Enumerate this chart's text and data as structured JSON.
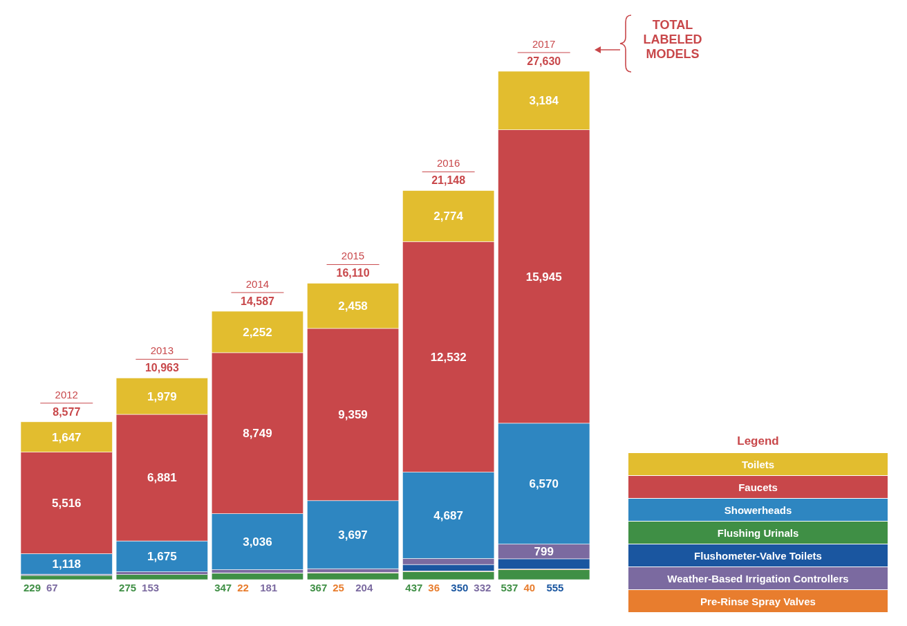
{
  "chart_data": {
    "type": "bar",
    "stacked": true,
    "categories": [
      "2012",
      "2013",
      "2014",
      "2015",
      "2016",
      "2017"
    ],
    "totals": [
      "8,577",
      "10,963",
      "14,587",
      "16,110",
      "21,148",
      "27,630"
    ],
    "legend_title": "Legend",
    "legend": "bottom right",
    "annotations": [
      "TOTAL LABELED MODELS"
    ],
    "series": [
      {
        "name": "Flushing Urinals",
        "color": "#3f8f45",
        "values": [
          229,
          275,
          347,
          367,
          437,
          537
        ],
        "value_labels": [
          "229",
          "275",
          "347",
          "367",
          "437",
          "537"
        ]
      },
      {
        "name": "Pre-Rinse Spray Valves",
        "color": "#e87d2e",
        "values": [
          null,
          null,
          22,
          25,
          36,
          40
        ],
        "value_labels": [
          null,
          null,
          "22",
          "25",
          "36",
          "40"
        ]
      },
      {
        "name": "Flushometer-Valve Toilets",
        "color": "#1a56a0",
        "values": [
          null,
          null,
          null,
          null,
          350,
          555
        ],
        "value_labels": [
          null,
          null,
          null,
          null,
          "350",
          "555"
        ]
      },
      {
        "name": "Weather-Based Irrigation Controllers",
        "color": "#7b6aa0",
        "values": [
          67,
          153,
          181,
          204,
          332,
          799
        ],
        "value_labels": [
          "67",
          "153",
          "181",
          "204",
          "332",
          "799"
        ]
      },
      {
        "name": "Showerheads",
        "color": "#2e86c1",
        "values": [
          1118,
          1675,
          3036,
          3697,
          4687,
          6570
        ],
        "value_labels": [
          "1,118",
          "1,675",
          "3,036",
          "3,697",
          "4,687",
          "6,570"
        ]
      },
      {
        "name": "Faucets",
        "color": "#c8474a",
        "values": [
          5516,
          6881,
          8749,
          9359,
          12532,
          15945
        ],
        "value_labels": [
          "5,516",
          "6,881",
          "8,749",
          "9,359",
          "12,532",
          "15,945"
        ]
      },
      {
        "name": "Toilets",
        "color": "#e2bd2f",
        "values": [
          1647,
          1979,
          2252,
          2458,
          2774,
          3184
        ],
        "value_labels": [
          "1,647",
          "1,979",
          "2,252",
          "2,458",
          "2,774",
          "3,184"
        ]
      }
    ]
  }
}
